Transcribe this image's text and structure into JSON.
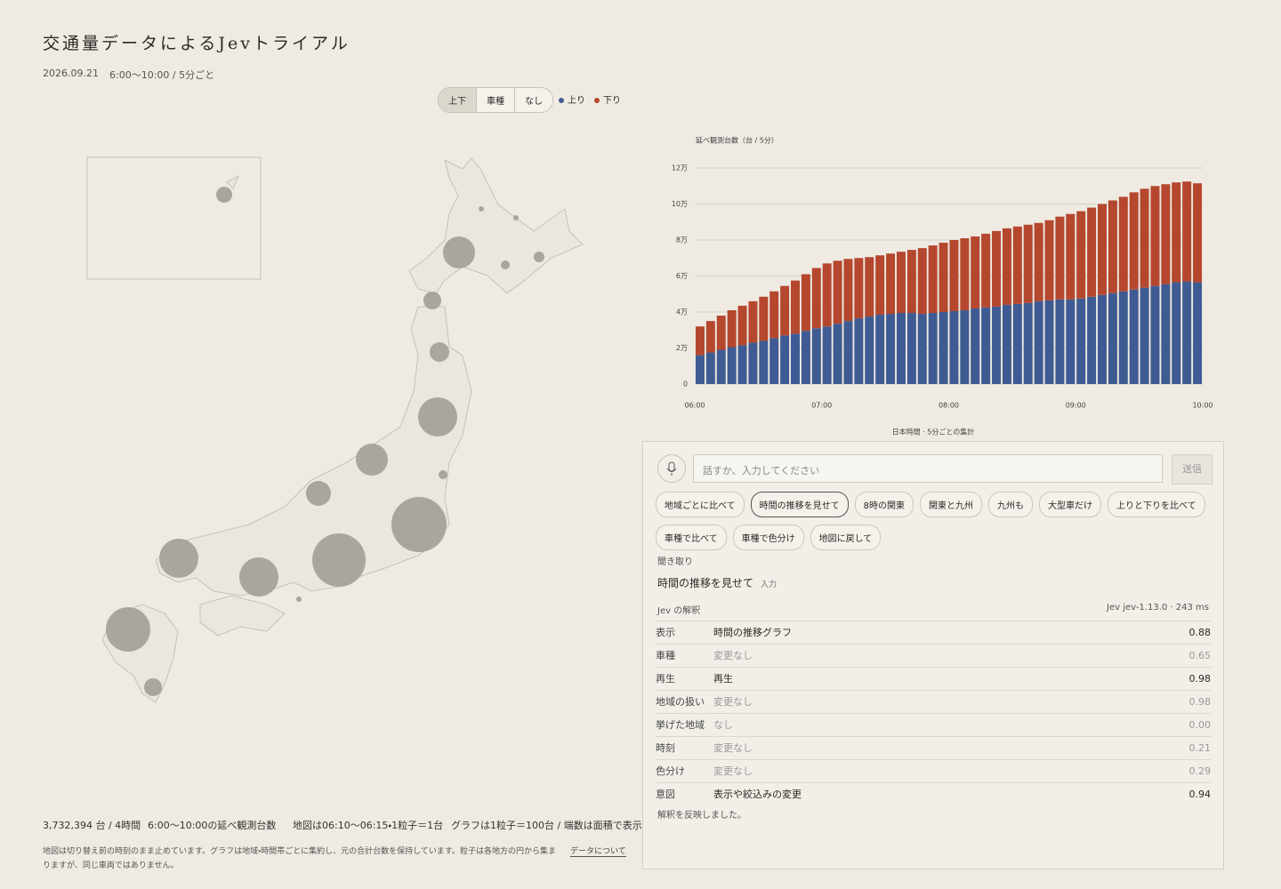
{
  "header": {
    "title": "交通量データによるJevトライアル",
    "date": "2026.09.21",
    "period": "6:00〜10:00 / 5分ごと"
  },
  "toggle": {
    "options": [
      "上下",
      "車種",
      "なし"
    ],
    "legend": [
      "上り",
      "下り"
    ]
  },
  "chart_data": {
    "type": "bar",
    "stacked": true,
    "y_title": "延べ観測台数（台 / 5分）",
    "x_title": "日本時間 · 5分ごとの集計",
    "categories": [
      null,
      null,
      null,
      null,
      null,
      null,
      null,
      null,
      null,
      null,
      null,
      null,
      null,
      null,
      null,
      null,
      null,
      null,
      null,
      null,
      null,
      null,
      null,
      null,
      null,
      null,
      null,
      null,
      null,
      null,
      null,
      null,
      null,
      null,
      null,
      null,
      null,
      null,
      null,
      null,
      null,
      null,
      null,
      null,
      null,
      null,
      null,
      null
    ],
    "xticks": [
      "06:00",
      "07:00",
      "08:00",
      "09:00",
      "10:00"
    ],
    "ylim": [
      0,
      120000
    ],
    "yticks": [
      0,
      {
        "value": 20000,
        "label": "2万"
      },
      {
        "value": 40000,
        "label": "4万"
      },
      {
        "value": 60000,
        "label": "6万"
      },
      {
        "value": 80000,
        "label": "8万"
      },
      {
        "value": 100000,
        "label": "10万"
      },
      {
        "value": 120000,
        "label": "12万"
      }
    ],
    "grid": true,
    "series": [
      {
        "name": "上り",
        "color": "#3f5b93",
        "values": [
          16000,
          17500,
          19000,
          20500,
          21500,
          23000,
          24000,
          25500,
          27000,
          28000,
          29500,
          31000,
          32000,
          33500,
          35000,
          36500,
          37500,
          38500,
          39000,
          39500,
          39500,
          39000,
          39500,
          40000,
          40500,
          41000,
          42000,
          42500,
          43000,
          44000,
          44500,
          45000,
          46000,
          46500,
          47000,
          47000,
          47500,
          48500,
          49500,
          50500,
          51500,
          52500,
          53500,
          54500,
          55500,
          56500,
          57000,
          56500
        ]
      },
      {
        "name": "下り",
        "color": "#b5472e",
        "values": [
          16000,
          17500,
          19000,
          20500,
          22000,
          23000,
          24500,
          26000,
          27500,
          29500,
          31500,
          33500,
          35000,
          35000,
          34500,
          33500,
          33000,
          33000,
          33500,
          34000,
          35000,
          36500,
          37500,
          38500,
          39500,
          40000,
          40000,
          41000,
          42000,
          42500,
          43000,
          43500,
          43500,
          44500,
          46000,
          47500,
          48500,
          49500,
          50500,
          51500,
          52500,
          54000,
          55000,
          55500,
          55500,
          55500,
          55500,
          55000
        ]
      }
    ]
  },
  "stats": {
    "total": "3,732,394 台 / 4時間",
    "total_note": "6:00〜10:00の延べ観測台数",
    "map_note": "地図は06:10〜06:15・1粒子＝1台",
    "graph_note": "グラフは1粒子＝100台 / 端数は面積で表示"
  },
  "footnote": {
    "text": "地図は切り替え前の時刻のまま止めています。グラフは地域・時間帯ごとに集約し、元の合計台数を保持しています。粒子は各地方の円から集まりますが、同じ車両ではありません。",
    "link": "データについて"
  },
  "assistant": {
    "placeholder": "話すか、入力してください",
    "send": "送信",
    "chips": [
      "地域ごとに比べて",
      "時間の推移を見せて",
      "8時の関東",
      "関東と九州",
      "九州も",
      "大型車だけ",
      "上りと下りを比べて",
      "車種で比べて",
      "車種で色分け",
      "地図に戻して"
    ],
    "heard_label": "聞き取り",
    "heard_text": "時間の推移を見せて",
    "heard_tag": "入力",
    "interp_label": "Jev の解釈",
    "version": "Jev jev-1.13.0 · 243 ms",
    "rows": [
      [
        "表示",
        "時間の推移グラフ",
        "0.88"
      ],
      [
        "車種",
        "変更なし",
        "0.65"
      ],
      [
        "再生",
        "再生",
        "0.98"
      ],
      [
        "地域の扱い",
        "変更なし",
        "0.98"
      ],
      [
        "挙げた地域",
        "なし",
        "0.00"
      ],
      [
        "時刻",
        "変更なし",
        "0.21"
      ],
      [
        "色分け",
        "変更なし",
        "0.29"
      ],
      [
        "意図",
        "表示や絞込みの変更",
        "0.94"
      ]
    ],
    "status": "解釈を反映しました。"
  }
}
